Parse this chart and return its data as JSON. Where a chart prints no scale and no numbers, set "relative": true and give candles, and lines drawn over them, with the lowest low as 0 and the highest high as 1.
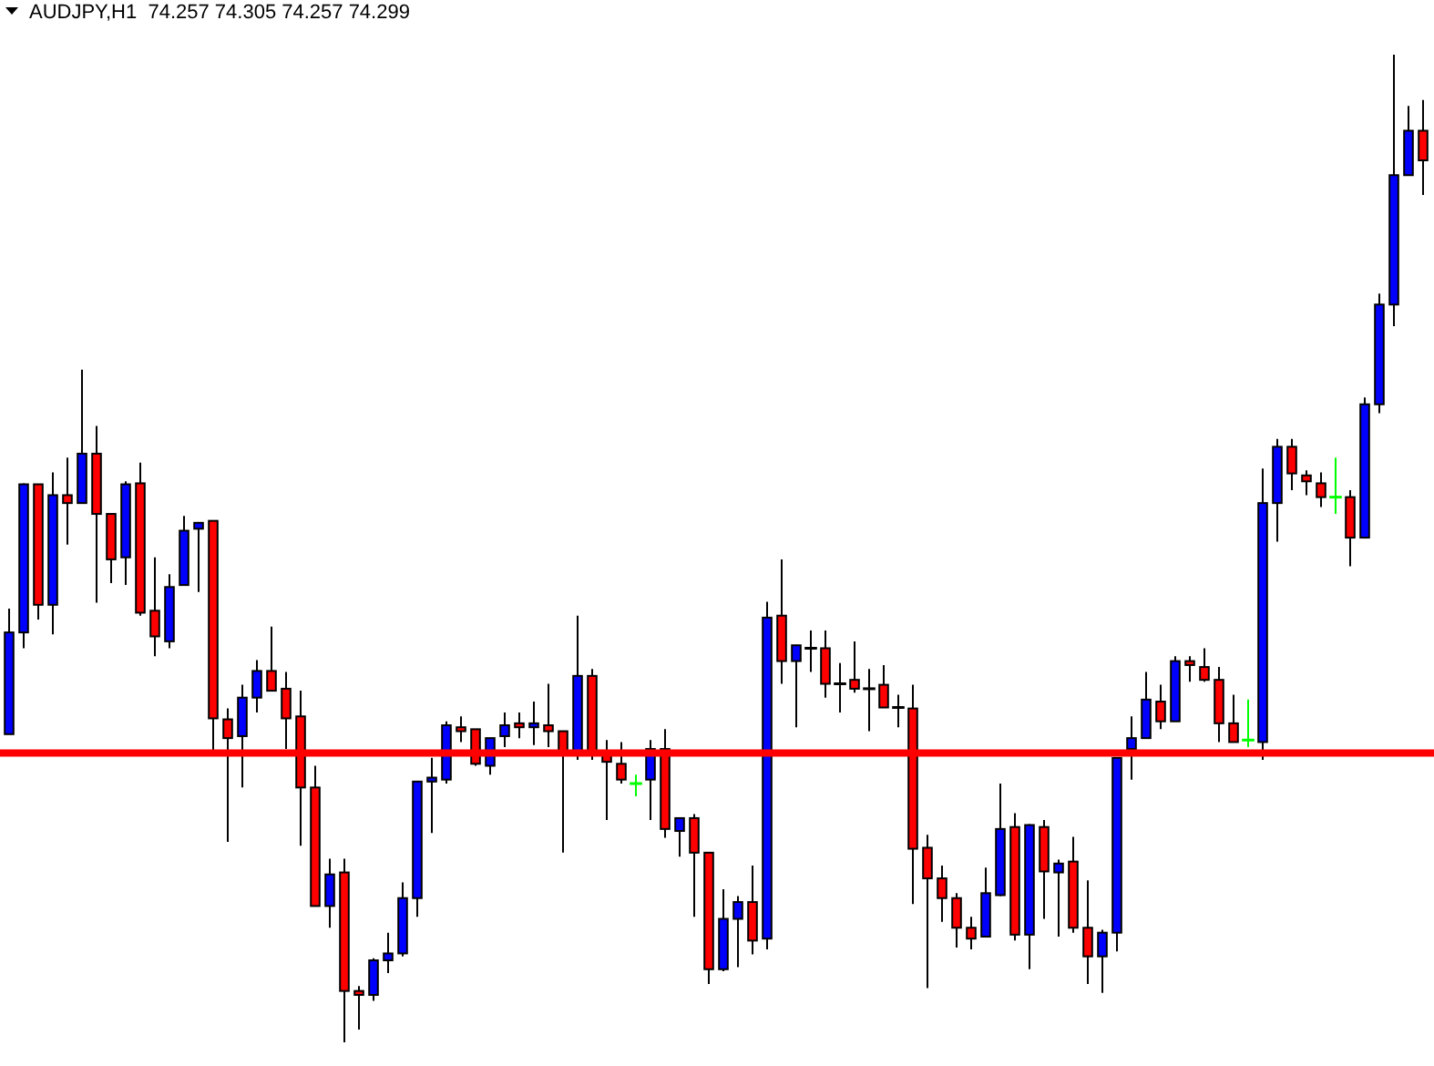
{
  "chart_data": {
    "type": "candlestick",
    "title": "AUDJPY,H1  74.257 74.305 74.257 74.299",
    "relative": true,
    "categories": [
      null,
      null,
      null,
      null,
      null,
      null,
      null,
      null,
      null,
      null,
      null,
      null,
      null,
      null,
      null,
      null,
      null,
      null,
      null,
      null,
      null,
      null,
      null,
      null,
      null,
      null,
      null,
      null,
      null,
      null,
      null,
      null,
      null,
      null,
      null,
      null,
      null,
      null,
      null,
      null,
      null,
      null,
      null,
      null,
      null,
      null,
      null,
      null,
      null,
      null,
      null,
      null,
      null,
      null,
      null,
      null,
      null,
      null,
      null,
      null,
      null,
      null,
      null,
      null,
      null,
      null,
      null,
      null,
      null,
      null,
      null,
      null,
      null,
      null,
      null,
      null,
      null,
      null,
      null,
      null,
      null,
      null,
      null,
      null,
      null,
      null,
      null,
      null,
      null,
      null,
      null,
      null,
      null,
      null,
      null,
      null,
      null,
      null
    ],
    "ohlc": [
      [
        0.312,
        0.439,
        0.312,
        0.415
      ],
      [
        0.415,
        0.566,
        0.399,
        0.565
      ],
      [
        0.565,
        0.565,
        0.428,
        0.443
      ],
      [
        0.443,
        0.577,
        0.413,
        0.554
      ],
      [
        0.554,
        0.592,
        0.504,
        0.546
      ],
      [
        0.546,
        0.681,
        0.546,
        0.596
      ],
      [
        0.596,
        0.624,
        0.445,
        0.535
      ],
      [
        0.535,
        0.535,
        0.465,
        0.489
      ],
      [
        0.491,
        0.568,
        0.463,
        0.565
      ],
      [
        0.566,
        0.587,
        0.432,
        0.435
      ],
      [
        0.437,
        0.491,
        0.391,
        0.411
      ],
      [
        0.406,
        0.474,
        0.399,
        0.461
      ],
      [
        0.463,
        0.533,
        0.463,
        0.518
      ],
      [
        0.52,
        0.526,
        0.456,
        0.526
      ],
      [
        0.528,
        0.528,
        0.295,
        0.328
      ],
      [
        0.327,
        0.338,
        0.203,
        0.308
      ],
      [
        0.31,
        0.362,
        0.258,
        0.349
      ],
      [
        0.349,
        0.387,
        0.334,
        0.376
      ],
      [
        0.376,
        0.421,
        0.356,
        0.356
      ],
      [
        0.358,
        0.375,
        0.297,
        0.328
      ],
      [
        0.33,
        0.356,
        0.199,
        0.258
      ],
      [
        0.258,
        0.28,
        0.138,
        0.138
      ],
      [
        0.138,
        0.186,
        0.116,
        0.17
      ],
      [
        0.172,
        0.186,
        0,
        0.052
      ],
      [
        0.052,
        0.057,
        0.013,
        0.048
      ],
      [
        0.048,
        0.085,
        0.042,
        0.083
      ],
      [
        0.083,
        0.111,
        0.07,
        0.09
      ],
      [
        0.09,
        0.162,
        0.087,
        0.146
      ],
      [
        0.146,
        0.264,
        0.127,
        0.264
      ],
      [
        0.264,
        0.288,
        0.212,
        0.268
      ],
      [
        0.266,
        0.325,
        0.262,
        0.321
      ],
      [
        0.319,
        0.33,
        0.304,
        0.315
      ],
      [
        0.317,
        0.317,
        0.28,
        0.282
      ],
      [
        0.28,
        0.308,
        0.271,
        0.308
      ],
      [
        0.31,
        0.334,
        0.299,
        0.321
      ],
      [
        0.323,
        0.334,
        0.308,
        0.319
      ],
      [
        0.319,
        0.345,
        0.301,
        0.323
      ],
      [
        0.321,
        0.363,
        0.299,
        0.315
      ],
      [
        0.315,
        0.315,
        0.192,
        0.293
      ],
      [
        0.293,
        0.432,
        0.286,
        0.371
      ],
      [
        0.371,
        0.378,
        0.286,
        0.293
      ],
      [
        0.293,
        0.306,
        0.225,
        0.284
      ],
      [
        0.282,
        0.304,
        0.262,
        0.266
      ],
      [
        0.262,
        0.271,
        0.249,
        0.262
      ],
      [
        0.266,
        0.306,
        0.225,
        0.297
      ],
      [
        0.297,
        0.317,
        0.207,
        0.216
      ],
      [
        0.214,
        0.227,
        0.188,
        0.227
      ],
      [
        0.227,
        0.231,
        0.127,
        0.192
      ],
      [
        0.192,
        0.192,
        0.059,
        0.074
      ],
      [
        0.074,
        0.155,
        0.072,
        0.125
      ],
      [
        0.125,
        0.148,
        0.076,
        0.142
      ],
      [
        0.142,
        0.179,
        0.089,
        0.103
      ],
      [
        0.105,
        0.446,
        0.094,
        0.43
      ],
      [
        0.432,
        0.489,
        0.363,
        0.386
      ],
      [
        0.386,
        0.402,
        0.319,
        0.402
      ],
      [
        0.399,
        0.417,
        0.375,
        0.399
      ],
      [
        0.399,
        0.417,
        0.349,
        0.363
      ],
      [
        0.363,
        0.384,
        0.334,
        0.363
      ],
      [
        0.367,
        0.406,
        0.354,
        0.358
      ],
      [
        0.358,
        0.378,
        0.315,
        0.358
      ],
      [
        0.362,
        0.382,
        0.339,
        0.339
      ],
      [
        0.339,
        0.352,
        0.319,
        0.339
      ],
      [
        0.338,
        0.362,
        0.14,
        0.196
      ],
      [
        0.197,
        0.21,
        0.055,
        0.166
      ],
      [
        0.166,
        0.179,
        0.122,
        0.146
      ],
      [
        0.146,
        0.151,
        0.096,
        0.116
      ],
      [
        0.116,
        0.127,
        0.094,
        0.105
      ],
      [
        0.107,
        0.177,
        0.107,
        0.151
      ],
      [
        0.149,
        0.262,
        0.148,
        0.216
      ],
      [
        0.218,
        0.232,
        0.103,
        0.109
      ],
      [
        0.109,
        0.221,
        0.074,
        0.22
      ],
      [
        0.218,
        0.225,
        0.125,
        0.173
      ],
      [
        0.172,
        0.185,
        0.107,
        0.181
      ],
      [
        0.183,
        0.208,
        0.111,
        0.116
      ],
      [
        0.116,
        0.164,
        0.059,
        0.087
      ],
      [
        0.087,
        0.114,
        0.05,
        0.111
      ],
      [
        0.111,
        0.288,
        0.092,
        0.288
      ],
      [
        0.297,
        0.33,
        0.266,
        0.308
      ],
      [
        0.308,
        0.375,
        0.308,
        0.347
      ],
      [
        0.345,
        0.362,
        0.317,
        0.325
      ],
      [
        0.325,
        0.391,
        0.325,
        0.386
      ],
      [
        0.386,
        0.391,
        0.365,
        0.382
      ],
      [
        0.38,
        0.399,
        0.365,
        0.367
      ],
      [
        0.367,
        0.38,
        0.304,
        0.323
      ],
      [
        0.323,
        0.352,
        0.304,
        0.304
      ],
      [
        0.306,
        0.347,
        0.299,
        0.306
      ],
      [
        0.304,
        0.581,
        0.286,
        0.546
      ],
      [
        0.546,
        0.611,
        0.507,
        0.603
      ],
      [
        0.603,
        0.611,
        0.559,
        0.576
      ],
      [
        0.574,
        0.579,
        0.554,
        0.568
      ],
      [
        0.566,
        0.577,
        0.542,
        0.552
      ],
      [
        0.552,
        0.592,
        0.535,
        0.552
      ],
      [
        0.552,
        0.559,
        0.482,
        0.511
      ],
      [
        0.511,
        0.653,
        0.511,
        0.646
      ],
      [
        0.646,
        0.758,
        0.637,
        0.747
      ],
      [
        0.747,
        1,
        0.725,
        0.878
      ],
      [
        0.878,
        0.948,
        0.878,
        0.923
      ],
      [
        0.923,
        0.954,
        0.858,
        0.893
      ]
    ],
    "colors": [
      "#0000ff",
      "#0000ff",
      "#ff0000",
      "#0000ff",
      "#ff0000",
      "#0000ff",
      "#ff0000",
      "#ff0000",
      "#0000ff",
      "#ff0000",
      "#ff0000",
      "#0000ff",
      "#0000ff",
      "#0000ff",
      "#ff0000",
      "#ff0000",
      "#0000ff",
      "#0000ff",
      "#ff0000",
      "#ff0000",
      "#ff0000",
      "#ff0000",
      "#0000ff",
      "#ff0000",
      "#ff0000",
      "#0000ff",
      "#0000ff",
      "#0000ff",
      "#0000ff",
      "#0000ff",
      "#0000ff",
      "#ff0000",
      "#ff0000",
      "#0000ff",
      "#0000ff",
      "#ff0000",
      "#0000ff",
      "#ff0000",
      "#ff0000",
      "#0000ff",
      "#ff0000",
      "#ff0000",
      "#ff0000",
      "#00ff00",
      "#0000ff",
      "#ff0000",
      "#0000ff",
      "#ff0000",
      "#ff0000",
      "#0000ff",
      "#0000ff",
      "#ff0000",
      "#0000ff",
      "#ff0000",
      "#0000ff",
      "#000000",
      "#ff0000",
      "#000000",
      "#ff0000",
      "#000000",
      "#ff0000",
      "#000000",
      "#ff0000",
      "#ff0000",
      "#ff0000",
      "#ff0000",
      "#ff0000",
      "#0000ff",
      "#0000ff",
      "#ff0000",
      "#0000ff",
      "#ff0000",
      "#0000ff",
      "#ff0000",
      "#ff0000",
      "#0000ff",
      "#0000ff",
      "#0000ff",
      "#0000ff",
      "#ff0000",
      "#0000ff",
      "#ff0000",
      "#ff0000",
      "#ff0000",
      "#ff0000",
      "#00ff00",
      "#0000ff",
      "#0000ff",
      "#ff0000",
      "#ff0000",
      "#ff0000",
      "#00ff00",
      "#ff0000",
      "#0000ff",
      "#0000ff",
      "#0000ff",
      "#0000ff",
      "#ff0000"
    ],
    "ref_lines": [
      {
        "axis": "y",
        "value": 0.293,
        "color": "#ff0000"
      }
    ]
  }
}
